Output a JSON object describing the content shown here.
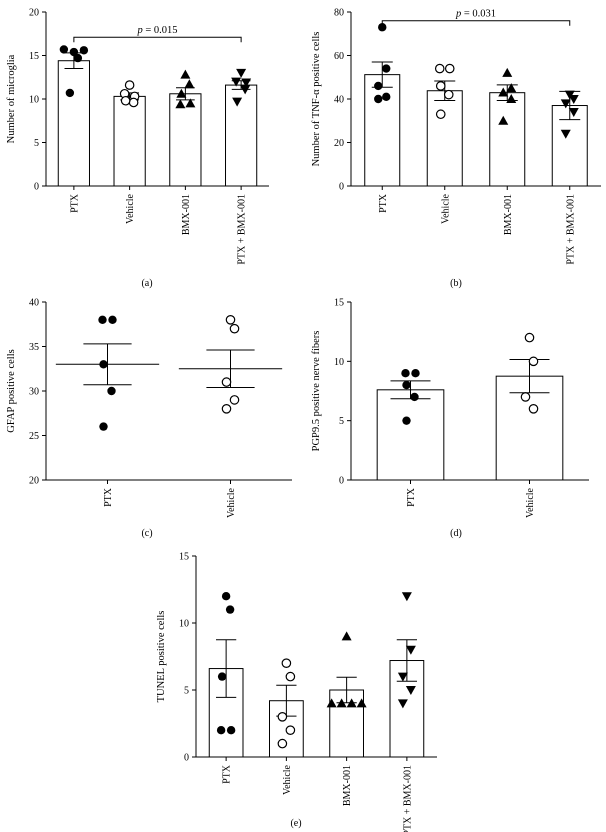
{
  "figure": {
    "background": "#ffffff",
    "bar_color": "#ffffff",
    "stroke_color": "#000000"
  },
  "chart_data": [
    {
      "panel": "(a)",
      "type": "bar",
      "ylabel": "Number of microglia",
      "ylim": [
        0,
        20
      ],
      "yticks": [
        0,
        5,
        10,
        15,
        20
      ],
      "categories": [
        "PTX",
        "Vehicle",
        "BMX-001",
        "PTX + BMX-001"
      ],
      "means": [
        14.4,
        10.3,
        10.6,
        11.6
      ],
      "sem": [
        0.9,
        0.4,
        0.7,
        0.5
      ],
      "markers": [
        "filled-circle",
        "open-circle",
        "filled-triangle-up",
        "filled-triangle-down"
      ],
      "points": [
        [
          15.7,
          15.4,
          15.6,
          14.7,
          10.7
        ],
        [
          11.6,
          10.6,
          10.3,
          9.6,
          9.8
        ],
        [
          12.8,
          11.7,
          10.6,
          9.4,
          9.5
        ],
        [
          13.0,
          12.0,
          11.9,
          11.1,
          9.7
        ]
      ],
      "significance": {
        "from": 0,
        "to": 3,
        "y": 17.1,
        "label_italic": "p",
        "label_rest": " = 0.015"
      }
    },
    {
      "panel": "(b)",
      "type": "bar",
      "ylabel": "Number of TNF-α positive cells",
      "ylim": [
        0,
        80
      ],
      "yticks": [
        0,
        20,
        40,
        60,
        80
      ],
      "categories": [
        "PTX",
        "Vehicle",
        "BMX-001",
        "PTX + BMX-001"
      ],
      "means": [
        51.2,
        43.8,
        42.9,
        37.0
      ],
      "sem": [
        5.8,
        4.5,
        3.6,
        6.5
      ],
      "markers": [
        "filled-circle",
        "open-circle",
        "filled-triangle-up",
        "filled-triangle-down"
      ],
      "points": [
        [
          73,
          54,
          46,
          41,
          40
        ],
        [
          54,
          54,
          46,
          42,
          33
        ],
        [
          52,
          45,
          43,
          40,
          30
        ],
        [
          42,
          40,
          38,
          34,
          24
        ]
      ],
      "significance": {
        "from": 0,
        "to": 3,
        "y": 76,
        "label_italic": "p",
        "label_rest": " = 0.031"
      }
    },
    {
      "panel": "(c)",
      "type": "scatter",
      "ylabel": "GFAP positive cells",
      "ylim": [
        20,
        40
      ],
      "yticks": [
        20,
        25,
        30,
        35,
        40
      ],
      "categories": [
        "PTX",
        "Vehicle"
      ],
      "means": [
        33.0,
        32.5
      ],
      "sem": [
        2.3,
        2.1
      ],
      "markers": [
        "filled-circle",
        "open-circle"
      ],
      "points": [
        [
          38,
          38,
          33,
          30,
          26
        ],
        [
          38,
          37,
          31,
          29,
          28
        ]
      ]
    },
    {
      "panel": "(d)",
      "type": "bar",
      "ylabel": "PGP9.5 positive nerve fibers",
      "ylim": [
        0,
        15
      ],
      "yticks": [
        0,
        5,
        10,
        15
      ],
      "categories": [
        "PTX",
        "Vehicle"
      ],
      "means": [
        7.6,
        8.75
      ],
      "sem": [
        0.75,
        1.4
      ],
      "markers": [
        "filled-circle",
        "open-circle"
      ],
      "points": [
        [
          9,
          9,
          8,
          7,
          5
        ],
        [
          12,
          10,
          7,
          6
        ]
      ]
    },
    {
      "panel": "(e)",
      "type": "bar",
      "ylabel": "TUNEL positive cells",
      "ylim": [
        0,
        15
      ],
      "yticks": [
        0,
        5,
        10,
        15
      ],
      "categories": [
        "PTX",
        "Vehicle",
        "BMX-001",
        "PTX + BMX-001"
      ],
      "means": [
        6.6,
        4.2,
        5.0,
        7.2
      ],
      "sem": [
        2.15,
        1.15,
        0.95,
        1.55
      ],
      "markers": [
        "filled-circle",
        "open-circle",
        "filled-triangle-up",
        "filled-triangle-down"
      ],
      "points": [
        [
          12,
          11,
          6,
          2,
          2
        ],
        [
          7,
          6,
          3,
          2,
          1
        ],
        [
          9,
          4,
          4,
          4,
          4
        ],
        [
          12,
          8,
          6,
          5,
          4
        ]
      ]
    }
  ]
}
